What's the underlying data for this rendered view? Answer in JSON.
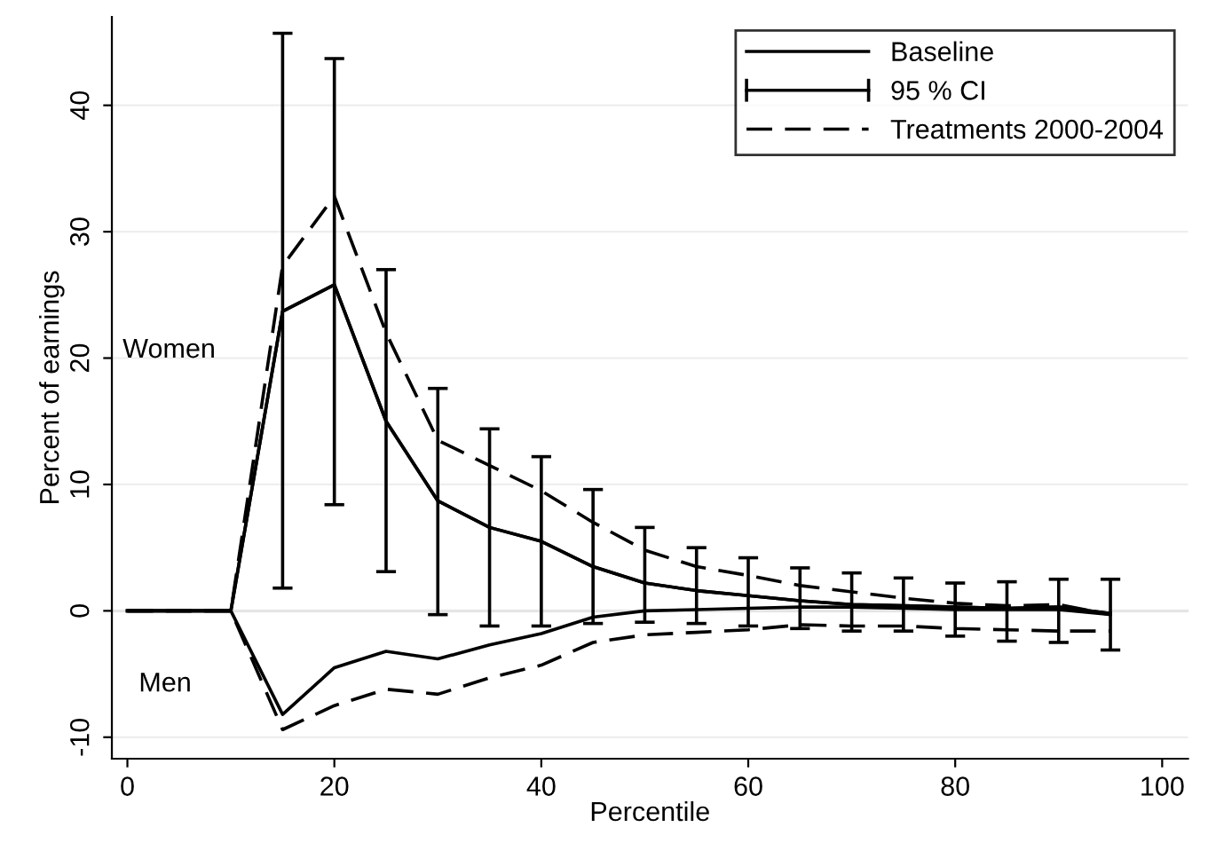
{
  "chart_data": {
    "type": "line",
    "xlabel": "Percentile",
    "ylabel": "Percent of earnings",
    "x": [
      0,
      5,
      10,
      15,
      20,
      25,
      30,
      35,
      40,
      45,
      50,
      55,
      60,
      65,
      70,
      75,
      80,
      85,
      90,
      95
    ],
    "series": [
      {
        "name": "Baseline",
        "color": "#000000",
        "line_style": "solid",
        "values": [
          0,
          0,
          0,
          23.7,
          25.8,
          15,
          8.7,
          6.6,
          5.5,
          3.5,
          2.2,
          1.6,
          1.2,
          0.8,
          0.5,
          0.4,
          0.3,
          0.2,
          0.3,
          -0.2
        ]
      },
      {
        "name": "95 % CI",
        "type": "line",
        "color": "#000000",
        "values": [
          0,
          0,
          0,
          23.7,
          25.8,
          15,
          8.7,
          6.6,
          5.5,
          3.5,
          2.2,
          1.6,
          1.2,
          0.8,
          0.5,
          0.4,
          0.3,
          0.2,
          0.3,
          -0.2
        ],
        "errors": [
          null,
          null,
          null,
          [
            1.8,
            45.7
          ],
          [
            8.4,
            43.7
          ],
          [
            3.1,
            27
          ],
          [
            -0.3,
            17.6
          ],
          [
            -1.2,
            14.4
          ],
          [
            -1.2,
            12.2
          ],
          [
            -1.0,
            9.6
          ],
          [
            -0.9,
            6.6
          ],
          [
            -1.0,
            5.0
          ],
          [
            -1.2,
            4.2
          ],
          [
            -1.4,
            3.4
          ],
          [
            -1.6,
            3.0
          ],
          [
            -1.6,
            2.6
          ],
          [
            -2.0,
            2.2
          ],
          [
            -2.4,
            2.3
          ],
          [
            -2.5,
            2.5
          ],
          [
            -3.1,
            2.5
          ]
        ]
      },
      {
        "name": "Treatments 2000-2004",
        "color": "#000000",
        "line_style": "dashed",
        "values": [
          0,
          0,
          0,
          27.3,
          32.8,
          22,
          13.5,
          11.5,
          9.5,
          7,
          4.8,
          3.5,
          2.8,
          2,
          1.5,
          1,
          0.6,
          0.4,
          0.5,
          -0.3
        ]
      },
      {
        "color": "#000000",
        "line_style": "solid",
        "values": [
          0,
          0,
          0,
          -8.2,
          -4.5,
          -3.2,
          -3.8,
          -2.7,
          -1.8,
          -0.5,
          0,
          0.1,
          0.2,
          0.3,
          0.3,
          0.2,
          0.1,
          0.1,
          0.1,
          -0.3
        ]
      },
      {
        "color": "#000000",
        "line_style": "dashed",
        "values": [
          0,
          0,
          0,
          -9.4,
          -7.5,
          -6.2,
          -6.6,
          -5.3,
          -4.3,
          -2.5,
          -1.9,
          -1.7,
          -1.5,
          -1.1,
          -1.2,
          -1.2,
          -1.4,
          -1.5,
          -1.6,
          -1.6
        ]
      }
    ],
    "annotations": [
      "Women",
      "Men"
    ],
    "ref_lines": [
      {
        "axis": "y",
        "value": 0,
        "color": "#999999"
      }
    ],
    "xlim": [
      -1.5,
      102.5
    ],
    "ylim": [
      -11.7,
      47
    ],
    "xticks": [
      0,
      20,
      40,
      60,
      80,
      100
    ],
    "yticks": [
      -10,
      0,
      10,
      20,
      30,
      40
    ],
    "grid": "y",
    "legend": "top right"
  }
}
